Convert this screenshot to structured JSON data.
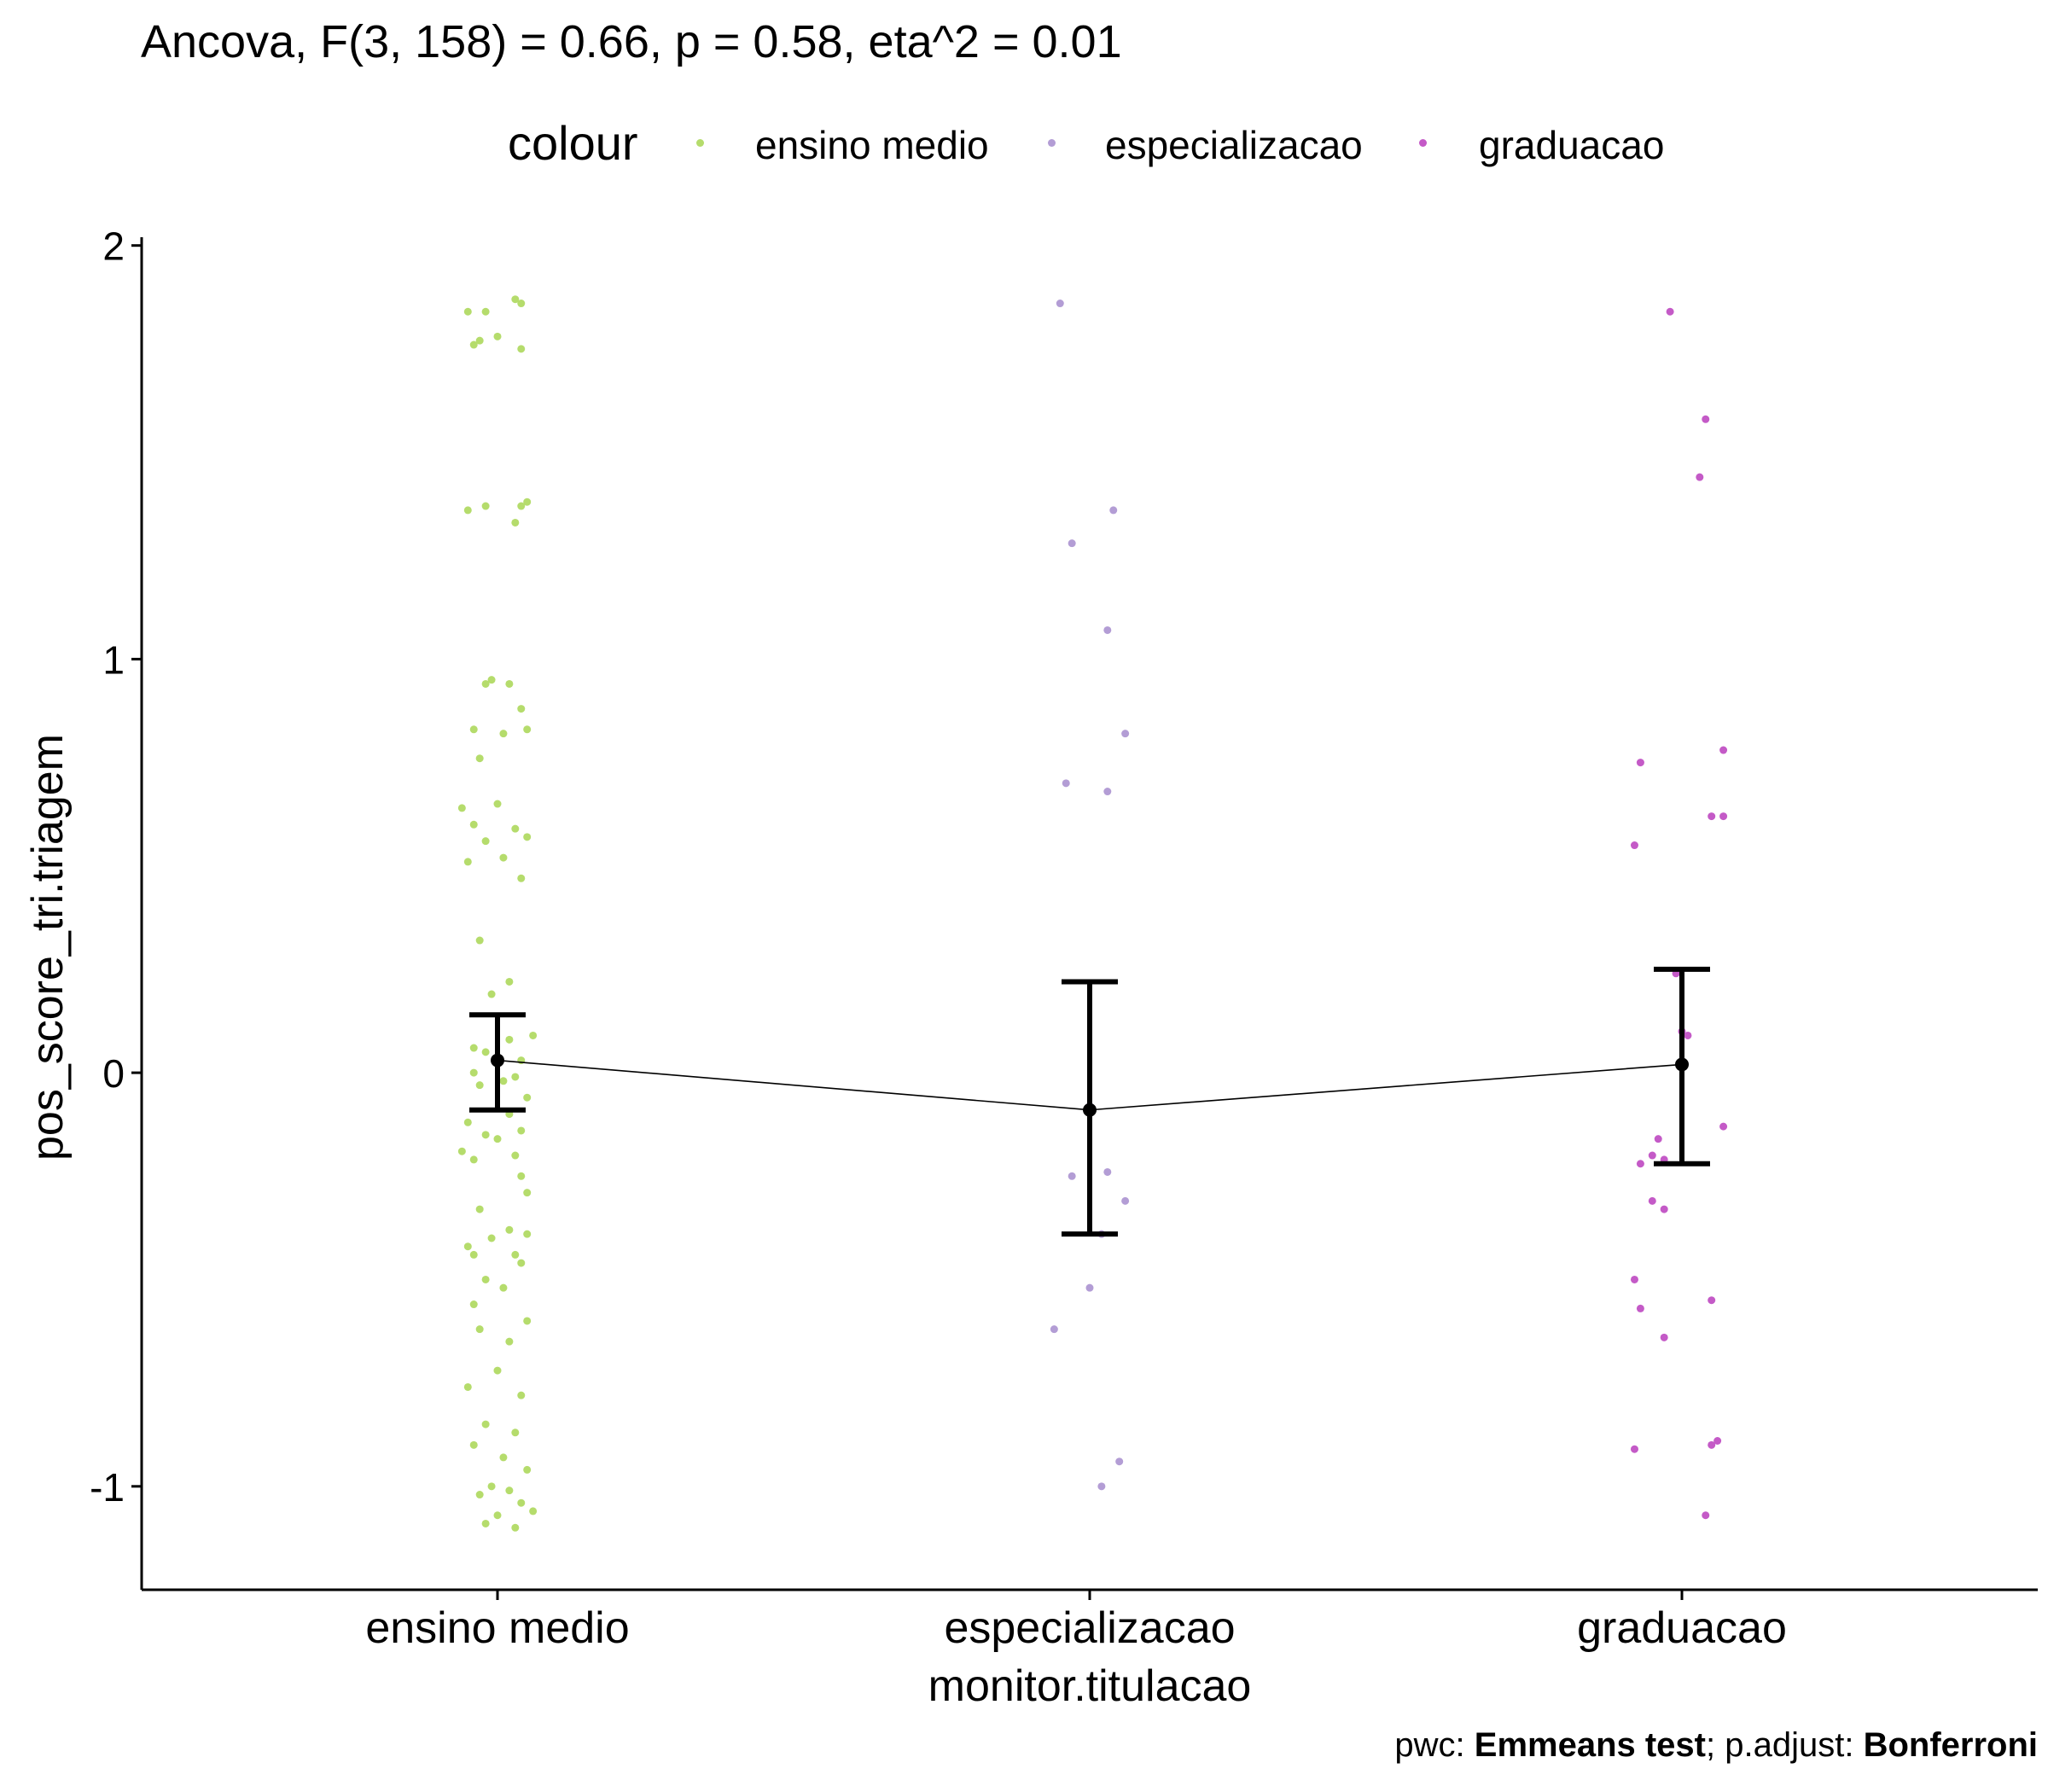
{
  "title": "Ancova, F(3, 158) = 0.66, p = 0.58, eta^2 = 0.01",
  "caption": {
    "prefix": "pwc: ",
    "test": "Emmeans test",
    "middle": "; p.adjust: ",
    "adjust": "Bonferroni"
  },
  "legend": {
    "title": "colour",
    "items": [
      {
        "label": "ensino medio",
        "color": "#b5dc6c"
      },
      {
        "label": "especializacao",
        "color": "#b39dd5"
      },
      {
        "label": "graduacao",
        "color": "#c45ac7"
      }
    ]
  },
  "chart_data": {
    "type": "scatter",
    "title": "Ancova, F(3, 158) = 0.66, p = 0.58, eta^2 = 0.01",
    "xlabel": "monitor.titulacao",
    "ylabel": "pos_score_tri.triagem",
    "categories": [
      "ensino medio",
      "especializacao",
      "graduacao"
    ],
    "ylim": [
      -1.25,
      2.02
    ],
    "yticks": [
      -1,
      0,
      1,
      2
    ],
    "grid": false,
    "legend_position": "top",
    "means": [
      {
        "category": "ensino medio",
        "mean": 0.03,
        "lower": -0.09,
        "upper": 0.14
      },
      {
        "category": "especializacao",
        "mean": -0.09,
        "lower": -0.39,
        "upper": 0.22
      },
      {
        "category": "graduacao",
        "mean": 0.02,
        "lower": -0.22,
        "upper": 0.25
      }
    ],
    "series": [
      {
        "name": "ensino medio",
        "color": "#b5dc6c",
        "x": 0,
        "jitter": [
          -0.05,
          0.04,
          -0.02,
          0.03,
          -0.04,
          0.0,
          0.04,
          -0.03,
          -0.02,
          0.05,
          0.04,
          -0.05,
          0.03,
          -0.01,
          0.02,
          -0.02,
          0.04,
          -0.04,
          0.01,
          0.05,
          -0.03,
          0.0,
          -0.06,
          0.03,
          -0.04,
          0.05,
          -0.02,
          0.01,
          -0.05,
          0.04,
          -0.03,
          0.02,
          -0.01,
          0.06,
          0.02,
          -0.04,
          -0.02,
          0.04,
          0.03,
          -0.04,
          0.01,
          -0.03,
          0.05,
          0.02,
          -0.05,
          0.04,
          -0.02,
          0.0,
          -0.06,
          0.03,
          -0.04,
          0.04,
          0.05,
          -0.03,
          0.02,
          -0.01,
          -0.05,
          0.03,
          0.04,
          -0.02,
          0.01,
          -0.04,
          0.05,
          -0.03,
          0.02,
          0.0,
          -0.05,
          0.04,
          -0.02,
          0.03,
          -0.04,
          0.01,
          0.05,
          -0.01,
          0.02,
          -0.03,
          0.04,
          0.06,
          0.0,
          -0.02,
          0.03,
          -0.04,
          0.05
        ],
        "y": [
          1.84,
          1.86,
          1.84,
          1.87,
          1.76,
          1.78,
          1.75,
          1.77,
          1.37,
          1.38,
          1.37,
          1.36,
          1.33,
          0.95,
          0.94,
          0.94,
          0.88,
          0.83,
          0.82,
          0.83,
          0.76,
          0.65,
          0.64,
          0.59,
          0.6,
          0.57,
          0.56,
          0.52,
          0.51,
          0.47,
          0.32,
          0.22,
          0.19,
          0.09,
          0.08,
          0.06,
          0.05,
          0.03,
          -0.01,
          0.0,
          -0.02,
          -0.03,
          -0.06,
          -0.1,
          -0.12,
          -0.14,
          -0.15,
          -0.16,
          -0.19,
          -0.2,
          -0.21,
          -0.25,
          -0.29,
          -0.33,
          -0.38,
          -0.4,
          -0.42,
          -0.44,
          -0.46,
          -0.5,
          -0.52,
          -0.56,
          -0.6,
          -0.62,
          -0.65,
          -0.72,
          -0.76,
          -0.78,
          -0.85,
          -0.87,
          -0.9,
          -0.93,
          -0.96,
          -1.0,
          -1.01,
          -1.02,
          -1.04,
          -1.06,
          -1.07,
          -1.09,
          -1.1,
          -0.44,
          -0.39
        ]
      },
      {
        "name": "especializacao",
        "color": "#b39dd5",
        "x": 1,
        "jitter": [
          -0.05,
          0.04,
          -0.03,
          0.03,
          0.06,
          -0.04,
          0.03,
          0.0,
          -0.03,
          0.03,
          0.06,
          0.02,
          0.0,
          -0.06,
          0.05,
          0.02
        ],
        "y": [
          1.86,
          1.36,
          1.28,
          1.07,
          0.82,
          0.7,
          0.68,
          -0.08,
          -0.25,
          -0.24,
          -0.31,
          -0.39,
          -0.52,
          -0.62,
          -0.94,
          -1.0
        ]
      },
      {
        "name": "graduacao",
        "color": "#c45ac7",
        "x": 2,
        "jitter": [
          -0.02,
          0.04,
          0.03,
          -0.07,
          0.07,
          0.05,
          0.07,
          -0.08,
          -0.01,
          0.0,
          0.01,
          -0.04,
          0.07,
          -0.05,
          -0.07,
          -0.03,
          -0.05,
          -0.03,
          -0.08,
          -0.07,
          0.05,
          -0.03,
          0.05,
          0.06,
          -0.08,
          0.04
        ],
        "y": [
          1.84,
          1.58,
          1.44,
          0.75,
          0.78,
          0.62,
          0.62,
          0.55,
          0.24,
          0.1,
          0.09,
          -0.16,
          -0.13,
          -0.2,
          -0.22,
          -0.21,
          -0.31,
          -0.33,
          -0.5,
          -0.57,
          -0.55,
          -0.64,
          -0.9,
          -0.89,
          -0.91,
          -1.07
        ]
      }
    ]
  }
}
